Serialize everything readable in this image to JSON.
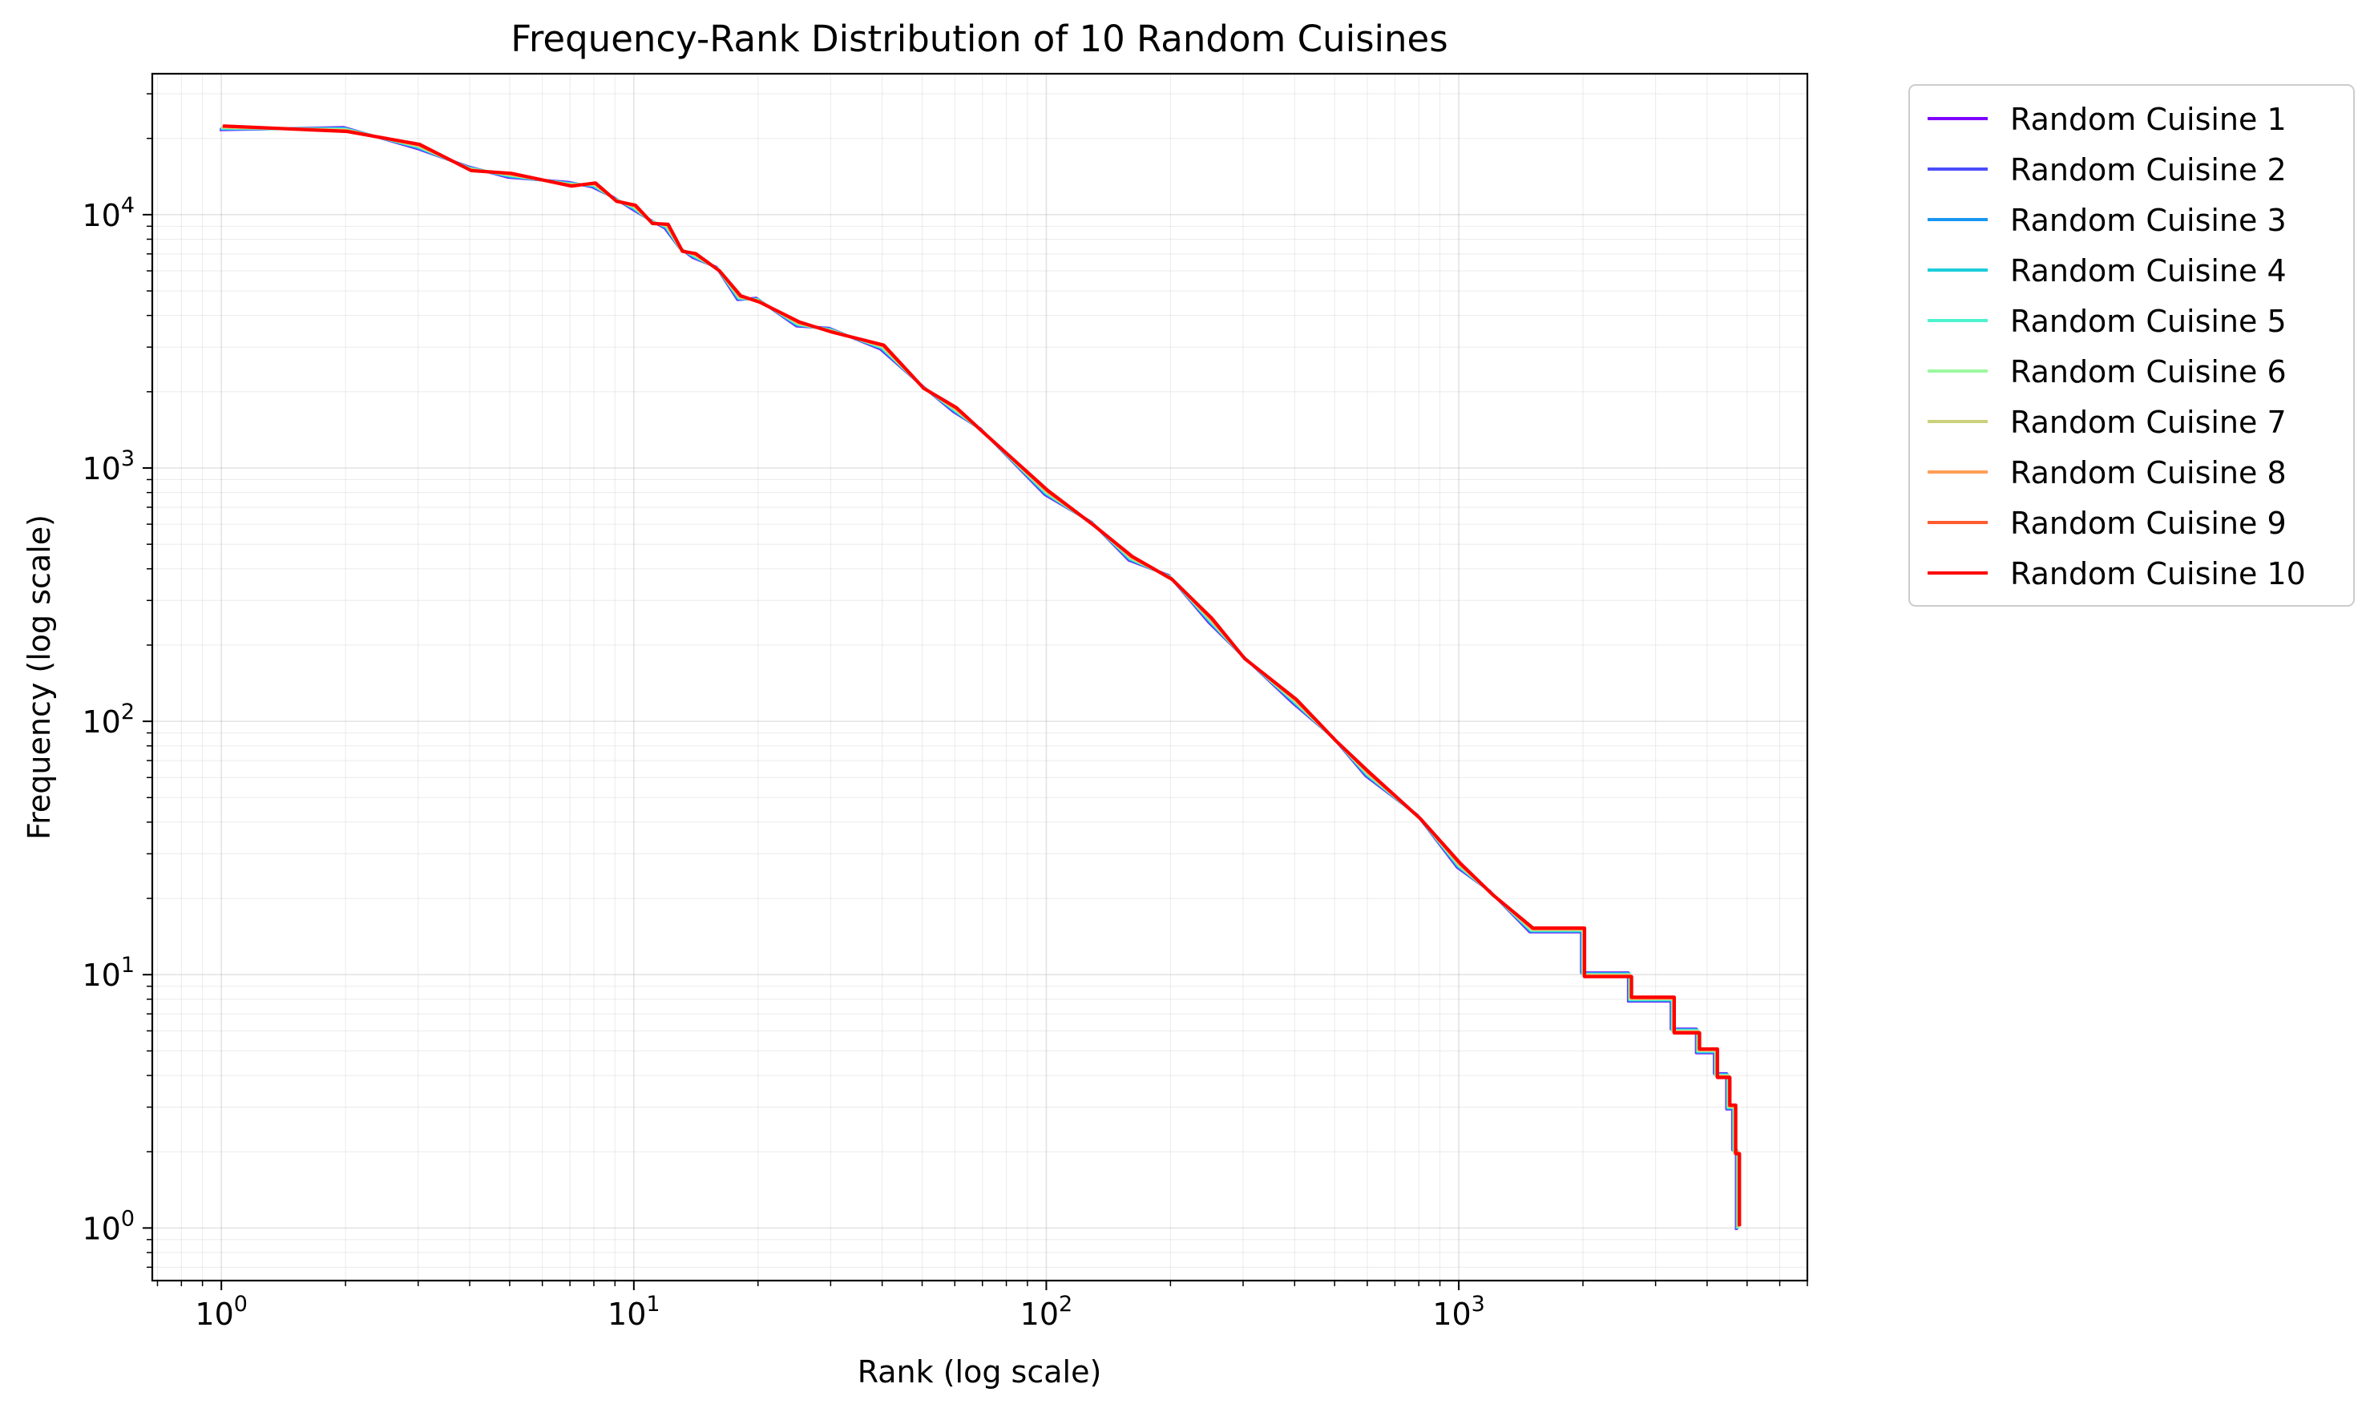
{
  "chart_data": {
    "type": "line",
    "title": "Frequency-Rank Distribution of 10 Random Cuisines",
    "xlabel": "Rank (log scale)",
    "ylabel": "Frequency (log scale)",
    "xscale": "log",
    "yscale": "log",
    "xlim": [
      0.68,
      7000
    ],
    "ylim": [
      0.62,
      36000
    ],
    "x_ticks": [
      {
        "base": "10",
        "exp": "0",
        "value": 1
      },
      {
        "base": "10",
        "exp": "1",
        "value": 10
      },
      {
        "base": "10",
        "exp": "2",
        "value": 100
      },
      {
        "base": "10",
        "exp": "3",
        "value": 1000
      }
    ],
    "y_ticks": [
      {
        "base": "10",
        "exp": "0",
        "value": 1
      },
      {
        "base": "10",
        "exp": "1",
        "value": 10
      },
      {
        "base": "10",
        "exp": "2",
        "value": 100
      },
      {
        "base": "10",
        "exp": "3",
        "value": 1000
      },
      {
        "base": "10",
        "exp": "4",
        "value": 10000
      }
    ],
    "grid": true,
    "legend_position": "outside-right",
    "curve": {
      "x": [
        1,
        2,
        3,
        4,
        5,
        7,
        8,
        9,
        10,
        11,
        12,
        13,
        14,
        16,
        18,
        20,
        25,
        30,
        40,
        50,
        60,
        70,
        100,
        130,
        160,
        200,
        250,
        300,
        400,
        500,
        600,
        800,
        1000,
        1200,
        1500,
        2000,
        2600,
        3300,
        3800,
        4200,
        4500,
        4650,
        4750
      ],
      "y": [
        22000,
        21700,
        18600,
        15200,
        14300,
        13200,
        13100,
        11500,
        10700,
        9400,
        9000,
        7300,
        6900,
        6100,
        4700,
        4600,
        3700,
        3500,
        3000,
        2100,
        1700,
        1400,
        800,
        600,
        440,
        370,
        250,
        180,
        120,
        85,
        62,
        42,
        27,
        21,
        15,
        10,
        8,
        6,
        5,
        4,
        3,
        2,
        1
      ]
    },
    "series": [
      {
        "name": "Random Cuisine 1",
        "color": "#8000ff"
      },
      {
        "name": "Random Cuisine 2",
        "color": "#4a4dfa"
      },
      {
        "name": "Random Cuisine 3",
        "color": "#1996f3"
      },
      {
        "name": "Random Cuisine 4",
        "color": "#1ccedb"
      },
      {
        "name": "Random Cuisine 5",
        "color": "#4df3ce"
      },
      {
        "name": "Random Cuisine 6",
        "color": "#9cf7a0"
      },
      {
        "name": "Random Cuisine 7",
        "color": "#cbd17c"
      },
      {
        "name": "Random Cuisine 8",
        "color": "#ff9f56"
      },
      {
        "name": "Random Cuisine 9",
        "color": "#ff5b2e"
      },
      {
        "name": "Random Cuisine 10",
        "color": "#ff0000"
      }
    ]
  }
}
